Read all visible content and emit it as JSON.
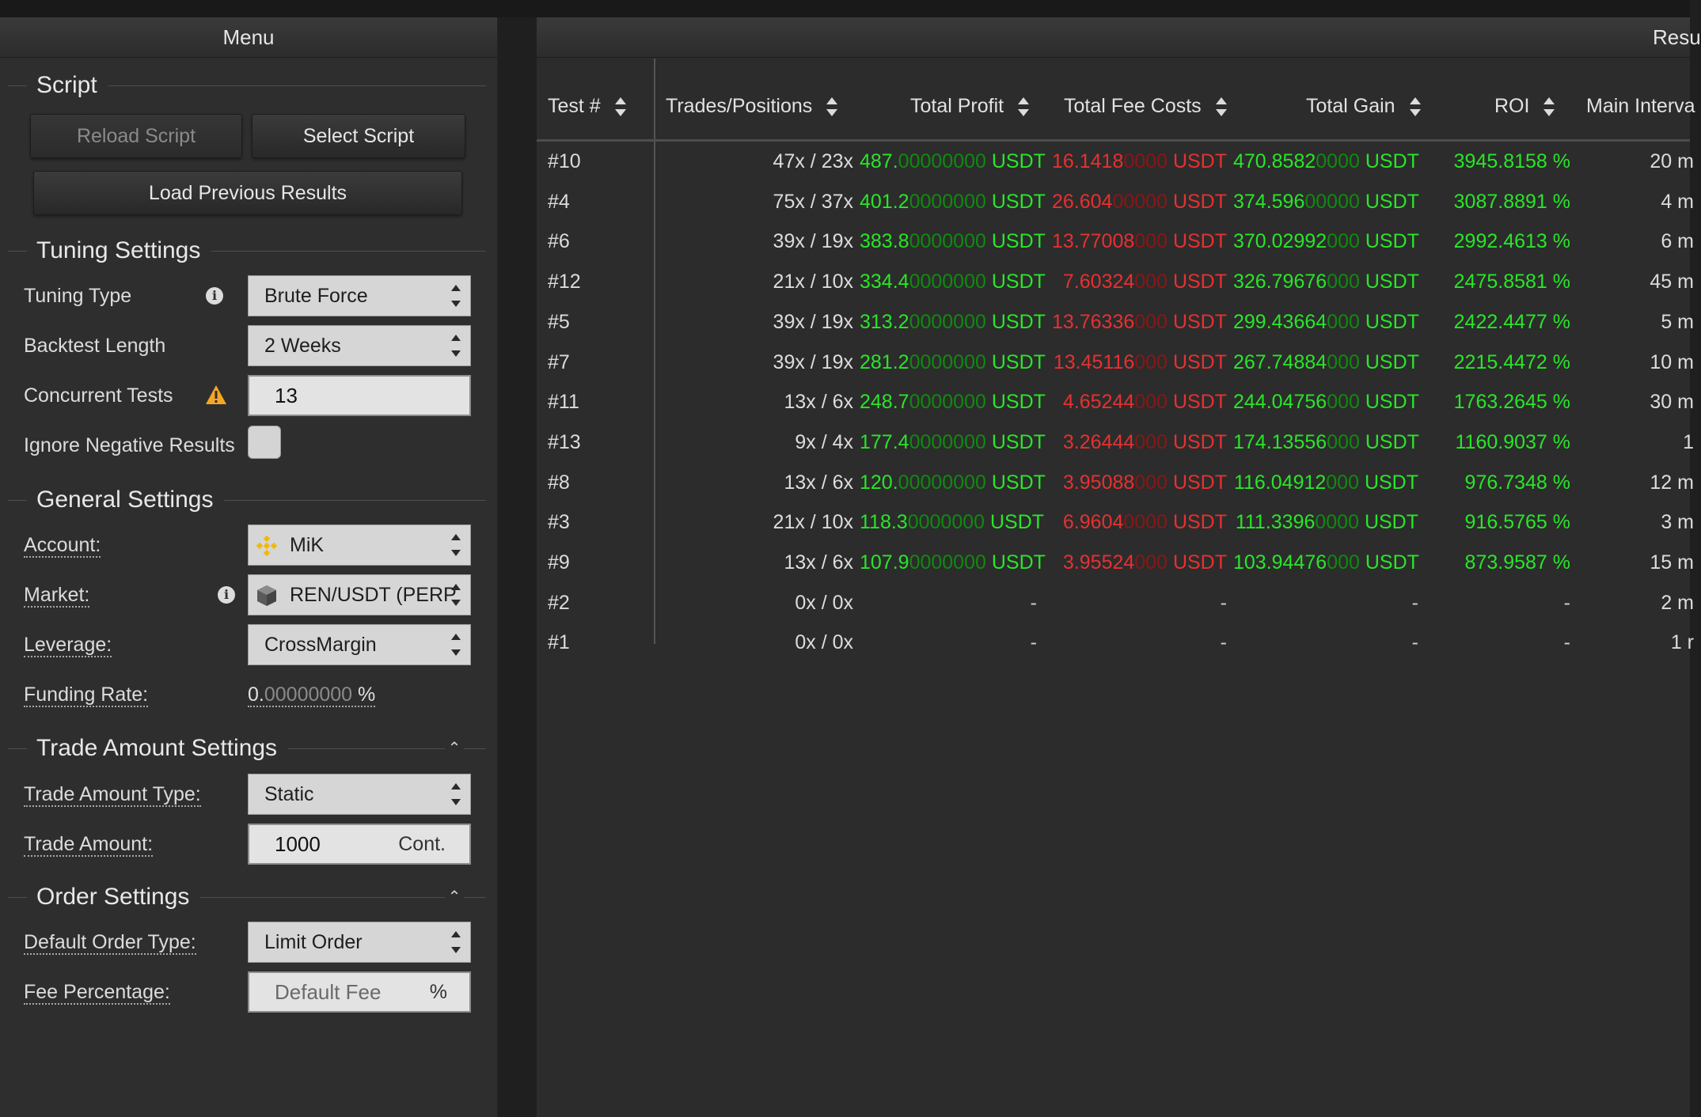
{
  "menu": {
    "title": "Menu",
    "script_section": {
      "title": "Script",
      "reload_label": "Reload Script",
      "select_label": "Select Script",
      "load_previous_label": "Load Previous Results"
    },
    "tuning_section": {
      "title": "Tuning Settings",
      "tuning_type_label": "Tuning Type",
      "tuning_type_value": "Brute Force",
      "backtest_length_label": "Backtest Length",
      "backtest_length_value": "2 Weeks",
      "concurrent_tests_label": "Concurrent Tests",
      "concurrent_tests_value": "13",
      "ignore_negative_label": "Ignore Negative Results",
      "ignore_negative_checked": false
    },
    "general_section": {
      "title": "General Settings",
      "account_label": "Account:",
      "account_value": "MiK",
      "market_label": "Market:",
      "market_value": "REN/USDT (PERP",
      "leverage_label": "Leverage:",
      "leverage_value": "CrossMargin",
      "funding_rate_label": "Funding Rate:",
      "funding_rate_lead": "0.",
      "funding_rate_dim": "00000000",
      "funding_rate_unit": " %"
    },
    "trade_amount_section": {
      "title": "Trade Amount Settings",
      "type_label": "Trade Amount Type:",
      "type_value": "Static",
      "amount_label": "Trade Amount:",
      "amount_value": "1000",
      "amount_suffix": "Cont."
    },
    "order_section": {
      "title": "Order Settings",
      "order_type_label": "Default Order Type:",
      "order_type_value": "Limit Order",
      "fee_label": "Fee Percentage:",
      "fee_placeholder": "Default Fee",
      "fee_suffix": "%"
    }
  },
  "results": {
    "title": "Resu",
    "columns": [
      "Test #",
      "Trades/Positions",
      "Total Profit",
      "Total Fee Costs",
      "Total Gain",
      "ROI",
      "Main Interva"
    ],
    "rows": [
      {
        "test": "#10",
        "trades": "47x / 23x",
        "profit_a": "487.",
        "profit_b": "00000000",
        "fee_a": "16.1418",
        "fee_b": "0000",
        "gain_a": "470.8582",
        "gain_b": "0000",
        "roi": "3945.8158 %",
        "interval": "20 m"
      },
      {
        "test": "#4",
        "trades": "75x / 37x",
        "profit_a": "401.2",
        "profit_b": "0000000",
        "fee_a": "26.604",
        "fee_b": "00000",
        "gain_a": "374.596",
        "gain_b": "00000",
        "roi": "3087.8891 %",
        "interval": "4 m"
      },
      {
        "test": "#6",
        "trades": "39x / 19x",
        "profit_a": "383.8",
        "profit_b": "0000000",
        "fee_a": "13.77008",
        "fee_b": "000",
        "gain_a": "370.02992",
        "gain_b": "000",
        "roi": "2992.4613 %",
        "interval": "6 m"
      },
      {
        "test": "#12",
        "trades": "21x / 10x",
        "profit_a": "334.4",
        "profit_b": "0000000",
        "fee_a": "7.60324",
        "fee_b": "000",
        "gain_a": "326.79676",
        "gain_b": "000",
        "roi": "2475.8581 %",
        "interval": "45 m"
      },
      {
        "test": "#5",
        "trades": "39x / 19x",
        "profit_a": "313.2",
        "profit_b": "0000000",
        "fee_a": "13.76336",
        "fee_b": "000",
        "gain_a": "299.43664",
        "gain_b": "000",
        "roi": "2422.4477 %",
        "interval": "5 m"
      },
      {
        "test": "#7",
        "trades": "39x / 19x",
        "profit_a": "281.2",
        "profit_b": "0000000",
        "fee_a": "13.45116",
        "fee_b": "000",
        "gain_a": "267.74884",
        "gain_b": "000",
        "roi": "2215.4472 %",
        "interval": "10 m"
      },
      {
        "test": "#11",
        "trades": "13x / 6x",
        "profit_a": "248.7",
        "profit_b": "0000000",
        "fee_a": "4.65244",
        "fee_b": "000",
        "gain_a": "244.04756",
        "gain_b": "000",
        "roi": "1763.2645 %",
        "interval": "30 m"
      },
      {
        "test": "#13",
        "trades": "9x / 4x",
        "profit_a": "177.4",
        "profit_b": "0000000",
        "fee_a": "3.26444",
        "fee_b": "000",
        "gain_a": "174.13556",
        "gain_b": "000",
        "roi": "1160.9037 %",
        "interval": "1"
      },
      {
        "test": "#8",
        "trades": "13x / 6x",
        "profit_a": "120.",
        "profit_b": "00000000",
        "fee_a": "3.95088",
        "fee_b": "000",
        "gain_a": "116.04912",
        "gain_b": "000",
        "roi": "976.7348 %",
        "interval": "12 m"
      },
      {
        "test": "#3",
        "trades": "21x / 10x",
        "profit_a": "118.3",
        "profit_b": "0000000",
        "fee_a": "6.9604",
        "fee_b": "0000",
        "gain_a": "111.3396",
        "gain_b": "0000",
        "roi": "916.5765 %",
        "interval": "3 m"
      },
      {
        "test": "#9",
        "trades": "13x / 6x",
        "profit_a": "107.9",
        "profit_b": "0000000",
        "fee_a": "3.95524",
        "fee_b": "000",
        "gain_a": "103.94476",
        "gain_b": "000",
        "roi": "873.9587 %",
        "interval": "15 m"
      },
      {
        "test": "#2",
        "trades": "0x / 0x",
        "profit_a": "",
        "profit_b": "",
        "fee_a": "",
        "fee_b": "",
        "gain_a": "",
        "gain_b": "",
        "roi": "-",
        "interval": "2 m"
      },
      {
        "test": "#1",
        "trades": "0x / 0x",
        "profit_a": "",
        "profit_b": "",
        "fee_a": "",
        "fee_b": "",
        "gain_a": "",
        "gain_b": "",
        "roi": "-",
        "interval": "1 r"
      }
    ],
    "unit": " USDT",
    "empty": "-"
  },
  "colors": {
    "positive": "#28e628",
    "negative": "#e83030",
    "warning": "#f5a623",
    "binance": "#f0b90b"
  },
  "icons": [
    "info-icon",
    "warning-icon",
    "binance-icon",
    "cube-icon",
    "sort-icon",
    "collapse-up-icon"
  ]
}
